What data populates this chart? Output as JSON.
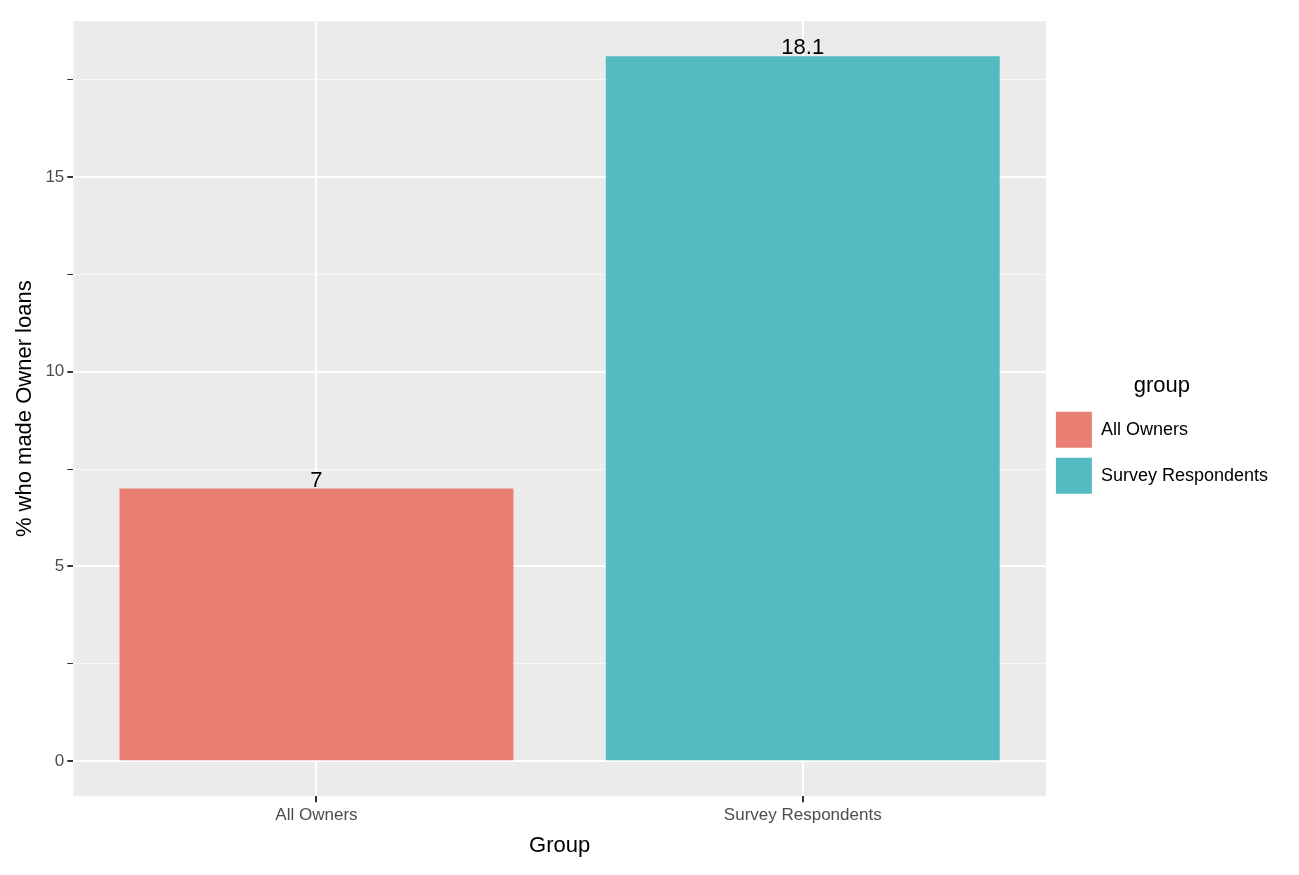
{
  "chart_data": {
    "type": "bar",
    "xlabel": "Group",
    "ylabel": "% who made Owner loans",
    "legend_title": "group",
    "categories": [
      "All Owners",
      "Survey Respondents"
    ],
    "series": [
      {
        "name": "All Owners",
        "color": "#e87f72",
        "values": [
          7,
          null
        ]
      },
      {
        "name": "Survey Respondents",
        "color": "#54bbc2",
        "values": [
          null,
          18.1
        ]
      }
    ],
    "ylim": [
      -0.9,
      19.0
    ],
    "yticks": [
      0,
      {
        "value": 2.5,
        "label": null
      },
      5,
      {
        "value": 7.5,
        "label": null
      },
      10,
      {
        "value": 12.5,
        "label": null
      },
      15,
      {
        "value": 17.5,
        "label": null
      }
    ],
    "grid": true,
    "legend": "right",
    "data_labels": true
  }
}
